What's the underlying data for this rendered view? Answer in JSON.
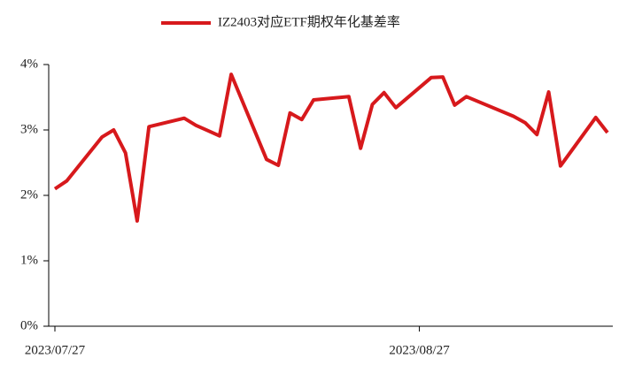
{
  "chart_data": {
    "type": "line",
    "x": [
      "2023/07/27",
      "2023/07/28",
      "2023/07/31",
      "2023/08/01",
      "2023/08/02",
      "2023/08/03",
      "2023/08/04",
      "2023/08/07",
      "2023/08/08",
      "2023/08/09",
      "2023/08/10",
      "2023/08/11",
      "2023/08/14",
      "2023/08/15",
      "2023/08/16",
      "2023/08/17",
      "2023/08/18",
      "2023/08/21",
      "2023/08/22",
      "2023/08/23",
      "2023/08/24",
      "2023/08/25",
      "2023/08/28",
      "2023/08/29",
      "2023/08/30",
      "2023/08/31",
      "2023/09/04",
      "2023/09/05",
      "2023/09/06",
      "2023/09/07",
      "2023/09/08",
      "2023/09/11",
      "2023/09/12"
    ],
    "series": [
      {
        "name": "IZ2403对应ETF期权年化基差率",
        "color": "#d7191c",
        "values": [
          2.1,
          2.22,
          2.89,
          3.0,
          2.65,
          1.61,
          3.05,
          3.18,
          3.07,
          2.99,
          2.91,
          3.85,
          2.55,
          2.46,
          3.26,
          3.16,
          3.46,
          3.51,
          2.72,
          3.39,
          3.57,
          3.34,
          3.8,
          3.81,
          3.38,
          3.51,
          3.21,
          3.11,
          2.93,
          3.58,
          2.45,
          3.19,
          2.96
        ]
      }
    ],
    "xlim": [
      "2023/07/27",
      "2023/09/12"
    ],
    "xticks": [
      "2023/07/27",
      "2023/08/27"
    ],
    "ylim": [
      0,
      4
    ],
    "yticks": [
      {
        "value": 0,
        "label": "0%"
      },
      {
        "value": 1,
        "label": "1%"
      },
      {
        "value": 2,
        "label": "2%"
      },
      {
        "value": 3,
        "label": "3%"
      },
      {
        "value": 4,
        "label": "4%"
      }
    ]
  }
}
